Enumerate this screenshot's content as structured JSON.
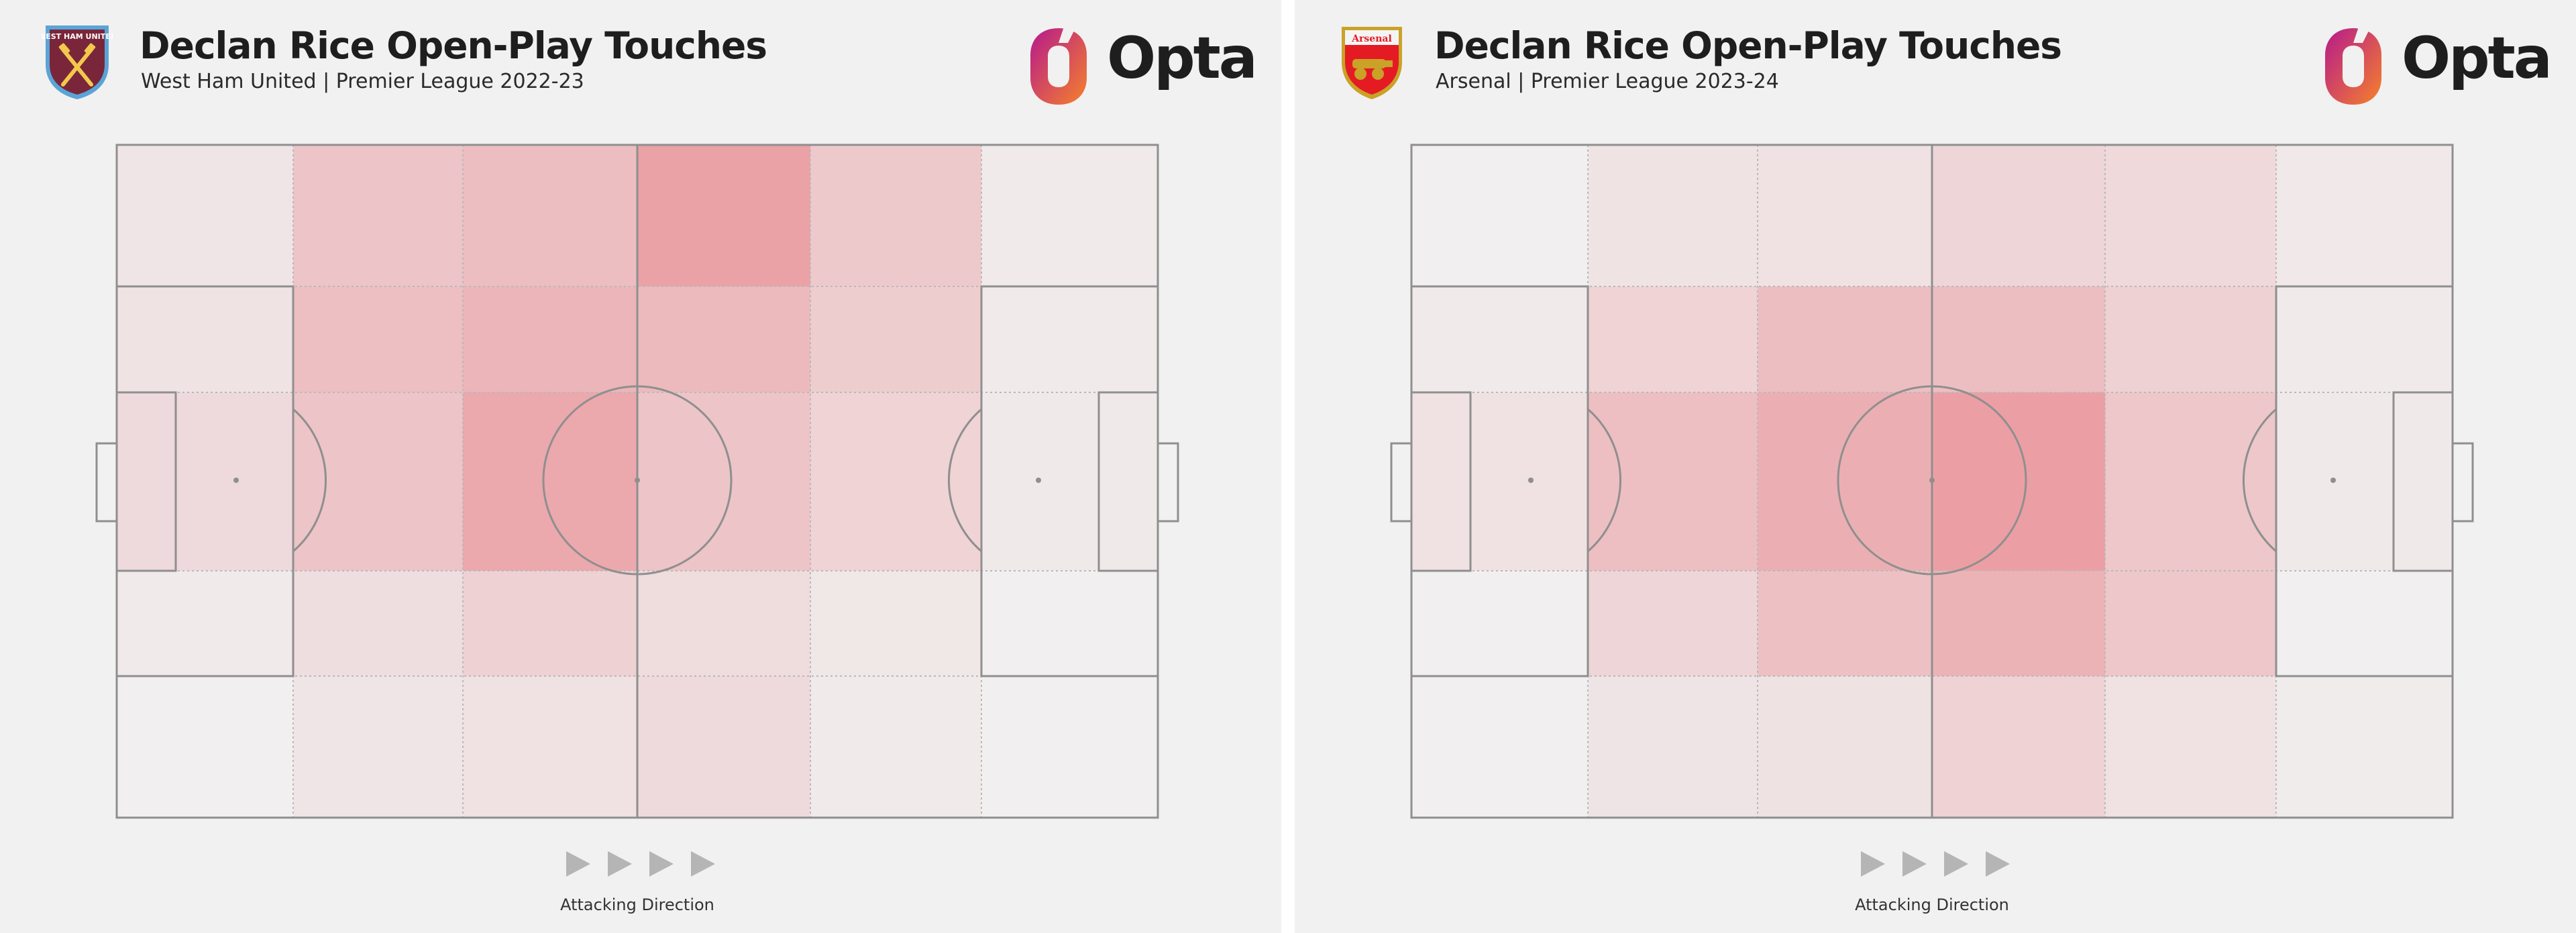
{
  "panels": [
    {
      "title": "Declan Rice Open-Play Touches",
      "subtitle": "West Ham United | Premier League 2022-23",
      "crest_icon": "west-ham-united-crest-icon",
      "crest_text": "WEST HAM UNITED",
      "logo_text": "Opta",
      "direction_label": "Attacking Direction"
    },
    {
      "title": "Declan Rice Open-Play Touches",
      "subtitle": "Arsenal | Premier League 2023-24",
      "crest_icon": "arsenal-crest-icon",
      "crest_text": "Arsenal",
      "logo_text": "Opta",
      "direction_label": "Attacking Direction"
    }
  ],
  "chart_data": [
    {
      "type": "heatmap",
      "title": "Declan Rice Open-Play Touches",
      "subtitle": "West Ham United | Premier League 2022-23",
      "grid_rows": 5,
      "grid_cols": 6,
      "values": [
        [
          0.1,
          0.4,
          0.47,
          0.72,
          0.36,
          0.06
        ],
        [
          0.12,
          0.45,
          0.55,
          0.5,
          0.32,
          0.06
        ],
        [
          0.2,
          0.4,
          0.66,
          0.4,
          0.27,
          0.07
        ],
        [
          0.06,
          0.17,
          0.29,
          0.19,
          0.09,
          0.02
        ],
        [
          0.02,
          0.1,
          0.14,
          0.2,
          0.06,
          0.02
        ]
      ]
    },
    {
      "type": "heatmap",
      "title": "Declan Rice Open-Play Touches",
      "subtitle": "Arsenal | Premier League 2023-24",
      "grid_rows": 5,
      "grid_cols": 6,
      "values": [
        [
          0.02,
          0.12,
          0.14,
          0.25,
          0.22,
          0.08
        ],
        [
          0.06,
          0.27,
          0.46,
          0.46,
          0.29,
          0.06
        ],
        [
          0.15,
          0.45,
          0.6,
          0.75,
          0.38,
          0.07
        ],
        [
          0.02,
          0.25,
          0.44,
          0.56,
          0.38,
          0.02
        ],
        [
          0.02,
          0.11,
          0.13,
          0.28,
          0.15,
          0.04
        ]
      ]
    }
  ],
  "colors": {
    "heat": "#e8838a",
    "line": "#8f8f8f",
    "background": "#f1f1f1",
    "west_ham_claret": "#7a263a",
    "west_ham_blue": "#5ba4d6",
    "arsenal_red": "#e41b23",
    "opta_magenta": "#c2198a",
    "opta_orange": "#f6812b"
  }
}
